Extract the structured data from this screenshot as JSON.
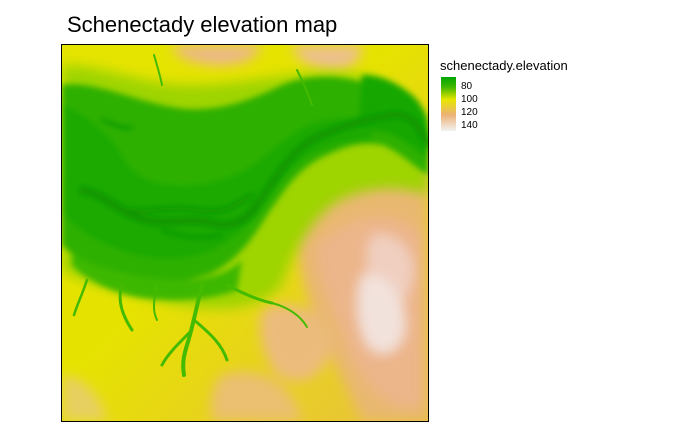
{
  "title": "Schenectady elevation map",
  "legend": {
    "title": "schenectady.elevation",
    "labels": [
      "80",
      "100",
      "120",
      "140"
    ],
    "colors": [
      "#00a600",
      "#e6e600",
      "#ecb176",
      "#f2f2f2"
    ]
  },
  "map": {
    "layer": "schenectady.elevation",
    "palette": "terrain",
    "value_range": [
      70,
      145
    ],
    "palette_colors": {
      "low": "#00a600",
      "mid_low": "#63c600",
      "mid": "#e6e600",
      "mid_high": "#eab64e",
      "high": "#ecb176",
      "peak": "#f2f2f2"
    }
  }
}
